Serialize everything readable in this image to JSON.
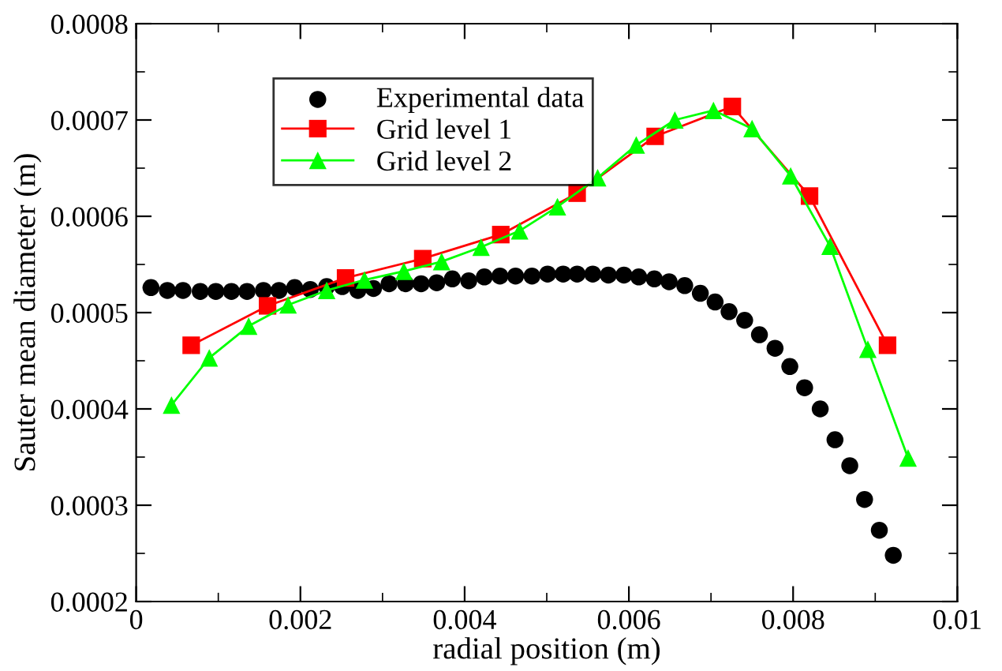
{
  "chart_data": {
    "type": "line",
    "xlabel": "radial position (m)",
    "ylabel": "Sauter mean diameter (m)",
    "xlim": [
      0,
      0.01
    ],
    "xticks": [
      0,
      0.002,
      0.004,
      0.006,
      0.008,
      0.01
    ],
    "ylim": [
      0.0002,
      0.0008
    ],
    "yticks": [
      0.0002,
      0.0003,
      0.0004,
      0.0005,
      0.0006,
      0.0007,
      0.0008
    ],
    "grid": false,
    "legend": "top left",
    "series": [
      {
        "name": "Experimental data",
        "type": "scatter",
        "marker": "circle",
        "color": "#000000",
        "x": [
          0.00018,
          0.00038,
          0.00057,
          0.00078,
          0.00097,
          0.00116,
          0.00135,
          0.00155,
          0.00174,
          0.00193,
          0.00212,
          0.00232,
          0.00251,
          0.0027,
          0.00289,
          0.00308,
          0.00328,
          0.00347,
          0.00366,
          0.00385,
          0.00405,
          0.00424,
          0.00443,
          0.00462,
          0.00482,
          0.00501,
          0.0052,
          0.00537,
          0.00556,
          0.00575,
          0.00594,
          0.00612,
          0.00631,
          0.00649,
          0.00668,
          0.00687,
          0.00705,
          0.00722,
          0.00741,
          0.00759,
          0.00778,
          0.00796,
          0.00814,
          0.00833,
          0.00851,
          0.00869,
          0.00887,
          0.00905,
          0.00922
        ],
        "values": [
          0.000526,
          0.000523,
          0.000523,
          0.000522,
          0.000522,
          0.000522,
          0.000522,
          0.000523,
          0.000523,
          0.000526,
          0.000524,
          0.000527,
          0.000527,
          0.000523,
          0.000525,
          0.00053,
          0.00053,
          0.00053,
          0.000531,
          0.000535,
          0.000533,
          0.000537,
          0.000538,
          0.000538,
          0.000538,
          0.00054,
          0.00054,
          0.00054,
          0.00054,
          0.000539,
          0.000539,
          0.000537,
          0.000535,
          0.000532,
          0.000528,
          0.00052,
          0.000511,
          0.000501,
          0.000492,
          0.000477,
          0.000463,
          0.000444,
          0.000422,
          0.0004,
          0.000368,
          0.000341,
          0.000306,
          0.000274,
          0.000248
        ]
      },
      {
        "name": "Grid level 1",
        "marker": "square",
        "color": "#ff0000",
        "x": [
          0.00067,
          0.0016,
          0.00255,
          0.00349,
          0.00444,
          0.00537,
          0.00632,
          0.00726,
          0.0082,
          0.00915
        ],
        "values": [
          0.000466,
          0.000507,
          0.000536,
          0.000556,
          0.000581,
          0.000624,
          0.000683,
          0.000714,
          0.000621,
          0.000466
        ]
      },
      {
        "name": "Grid level 2",
        "marker": "triangle",
        "color": "#00ff00",
        "x": [
          0.00043,
          0.00089,
          0.00137,
          0.00185,
          0.00232,
          0.00278,
          0.00326,
          0.00372,
          0.0042,
          0.00467,
          0.00513,
          0.00562,
          0.00609,
          0.00656,
          0.00703,
          0.0075,
          0.00797,
          0.00845,
          0.00891,
          0.0094
        ],
        "values": [
          0.000404,
          0.000453,
          0.000486,
          0.000508,
          0.000523,
          0.000534,
          0.000543,
          0.000553,
          0.000568,
          0.000585,
          0.00061,
          0.00064,
          0.000674,
          0.0007,
          0.00071,
          0.000691,
          0.000642,
          0.000569,
          0.000462,
          0.000349
        ]
      }
    ]
  }
}
